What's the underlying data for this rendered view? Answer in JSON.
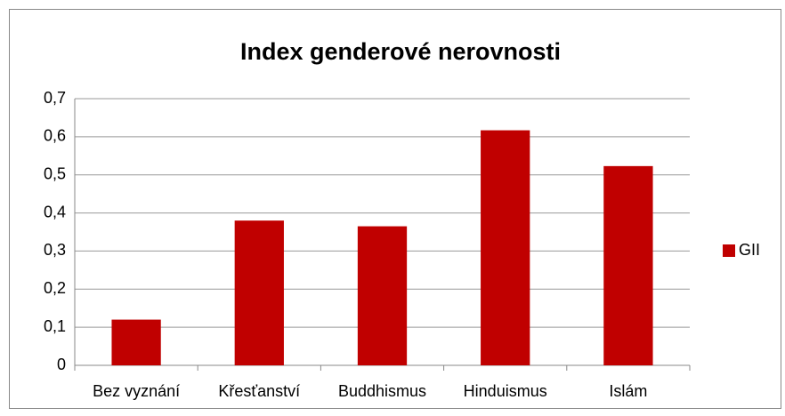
{
  "chart_data": {
    "type": "bar",
    "title": "Index genderové nerovnosti",
    "categories": [
      "Bez vyznání",
      "Křesťanství",
      "Buddhismus",
      "Hinduismus",
      "Islám"
    ],
    "series": [
      {
        "name": "GII",
        "color": "#c00000",
        "values": [
          0.12,
          0.38,
          0.365,
          0.617,
          0.523
        ]
      }
    ],
    "ylim": [
      0,
      0.7
    ],
    "yticks": [
      0,
      {
        "value": 0.1,
        "label": "0,1"
      },
      {
        "value": 0.2,
        "label": "0,2"
      },
      {
        "value": 0.3,
        "label": "0,3"
      },
      {
        "value": 0.4,
        "label": "0,4"
      },
      {
        "value": 0.5,
        "label": "0,5"
      },
      {
        "value": 0.6,
        "label": "0,6"
      },
      {
        "value": 0.7,
        "label": "0,7"
      }
    ],
    "grid": true,
    "legend": "right"
  }
}
